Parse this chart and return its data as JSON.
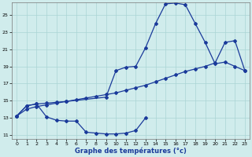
{
  "background_color": "#d0ecec",
  "grid_color": "#aad4d4",
  "line_color": "#1a3a9a",
  "xlabel": "Graphe des températures (°c)",
  "ylim": [
    10.5,
    26.5
  ],
  "yticks": [
    11,
    13,
    15,
    17,
    19,
    21,
    23,
    25
  ],
  "xticks": [
    0,
    1,
    2,
    3,
    4,
    5,
    6,
    7,
    8,
    9,
    10,
    11,
    12,
    13,
    14,
    15,
    16,
    17,
    18,
    19,
    20,
    21,
    22,
    23
  ],
  "series1_x": [
    0,
    1,
    2,
    3,
    4,
    5,
    9,
    10,
    11,
    12,
    13,
    14,
    15,
    16,
    17,
    18,
    19,
    20,
    21,
    22,
    23
  ],
  "series1_y": [
    13.2,
    14.4,
    14.6,
    14.7,
    14.8,
    14.9,
    15.4,
    18.5,
    18.9,
    19.0,
    21.2,
    24.0,
    26.3,
    26.4,
    26.2,
    24.0,
    21.8,
    19.3,
    19.5,
    19.0,
    18.5
  ],
  "series2_x": [
    0,
    1,
    2,
    3,
    4,
    5,
    6,
    7,
    8,
    9,
    10,
    11,
    12,
    13,
    14,
    15,
    16,
    17,
    18,
    19,
    20,
    21,
    22,
    23
  ],
  "series2_y": [
    13.2,
    14.0,
    14.3,
    14.5,
    14.7,
    14.9,
    15.1,
    15.3,
    15.5,
    15.7,
    15.9,
    16.2,
    16.5,
    16.8,
    17.2,
    17.6,
    18.0,
    18.4,
    18.7,
    19.0,
    19.4,
    21.8,
    22.0,
    18.5
  ],
  "series3_x": [
    0,
    1,
    2,
    3,
    4,
    5,
    6,
    7,
    8,
    9,
    10,
    11,
    12,
    13
  ],
  "series3_y": [
    13.2,
    14.4,
    14.6,
    13.1,
    12.7,
    12.6,
    12.6,
    11.3,
    11.2,
    11.1,
    11.1,
    11.2,
    11.5,
    13.0
  ]
}
